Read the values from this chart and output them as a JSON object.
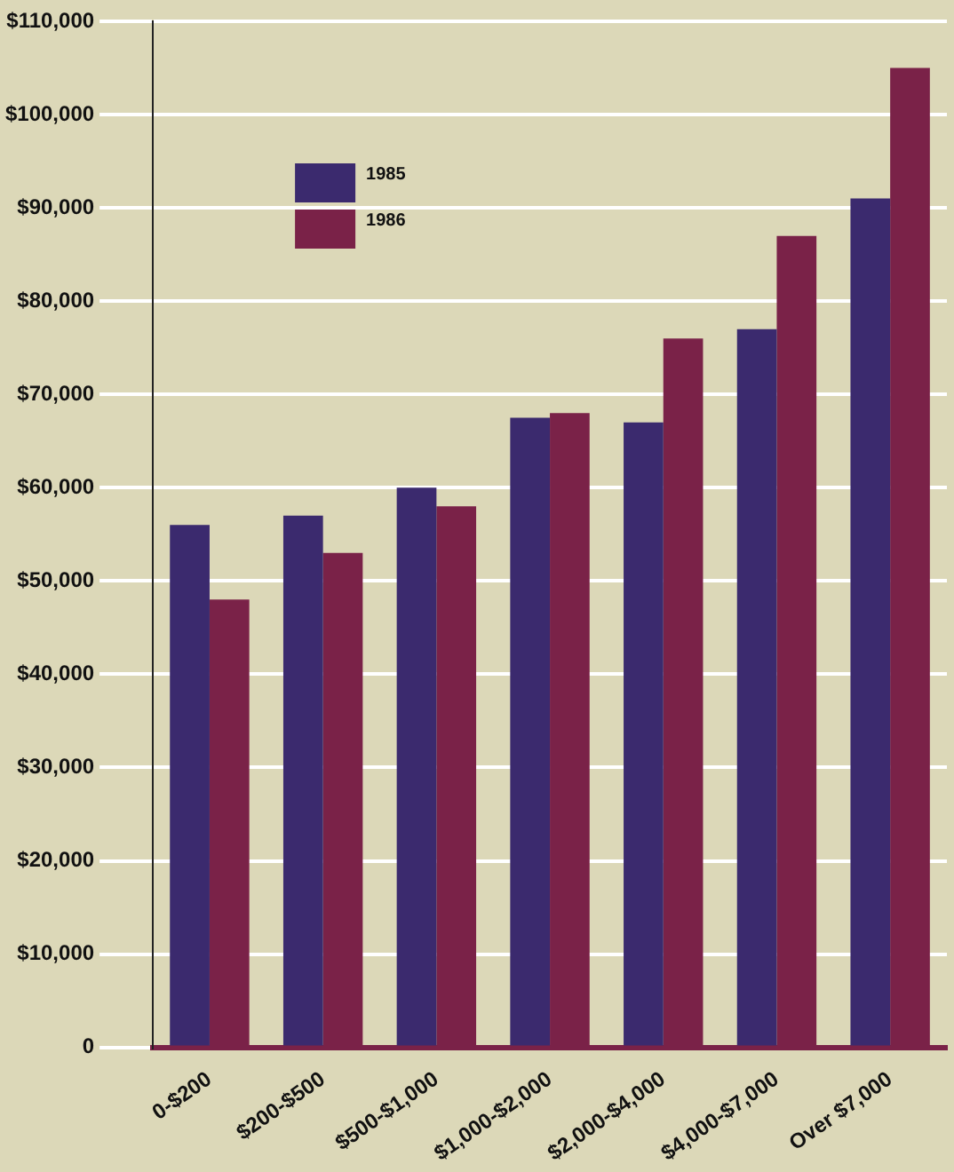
{
  "chart_data": {
    "type": "bar",
    "categories": [
      "0-$200",
      "$200-$500",
      "$500-$1,000",
      "$1,000-$2,000",
      "$2,000-$4,000",
      "$4,000-$7,000",
      "Over $7,000"
    ],
    "series": [
      {
        "name": "1985",
        "color": "#3b2a6e",
        "values": [
          56000,
          57000,
          60000,
          67500,
          67000,
          77000,
          91000
        ]
      },
      {
        "name": "1986",
        "color": "#7a2248",
        "values": [
          48000,
          53000,
          58000,
          68000,
          76000,
          87000,
          105000
        ]
      }
    ],
    "ylim": [
      0,
      110000
    ],
    "yticks": [
      0,
      {
        "value": 10000,
        "label": "$10,000"
      },
      {
        "value": 20000,
        "label": "$20,000"
      },
      {
        "value": 30000,
        "label": "$30,000"
      },
      {
        "value": 40000,
        "label": "$40,000"
      },
      {
        "value": 50000,
        "label": "$50,000"
      },
      {
        "value": 60000,
        "label": "$60,000"
      },
      {
        "value": 70000,
        "label": "$70,000"
      },
      {
        "value": 80000,
        "label": "$80,000"
      },
      {
        "value": 90000,
        "label": "$90,000"
      },
      {
        "value": 100000,
        "label": "$100,000"
      },
      {
        "value": 110000,
        "label": "$110,000"
      }
    ],
    "grid": "y",
    "legend": "top left"
  }
}
